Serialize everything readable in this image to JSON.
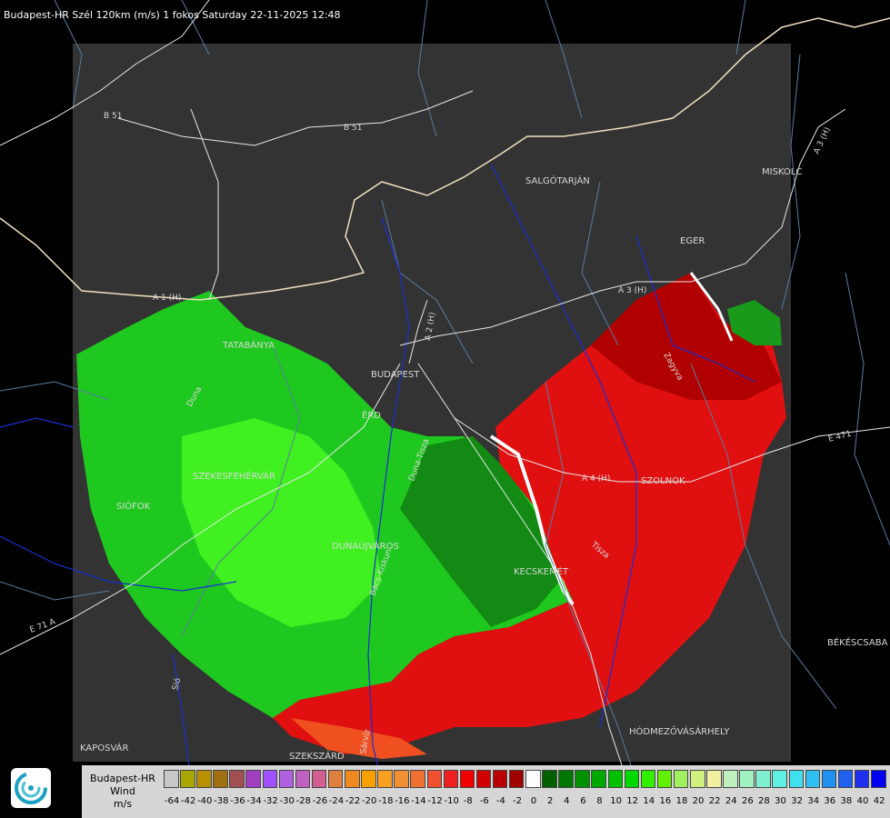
{
  "title": "Budapest-HR Szél 120km (m/s) 1 fokos Saturday 22-11-2025 12:48",
  "cities": [
    {
      "id": "salgotarjan",
      "name": "SALGÓTARJÁN"
    },
    {
      "id": "eger",
      "name": "EGER"
    },
    {
      "id": "miskolc",
      "name": "MISKOLC"
    },
    {
      "id": "tatabanya",
      "name": "TATABÁNYA"
    },
    {
      "id": "budapest",
      "name": "BUDAPEST"
    },
    {
      "id": "erd",
      "name": "ÉRD"
    },
    {
      "id": "szekesfehervar",
      "name": "SZÉKESFEHÉRVÁR"
    },
    {
      "id": "siofok",
      "name": "SIÓFOK"
    },
    {
      "id": "dunaujvaros",
      "name": "DUNAÚJVÁROS"
    },
    {
      "id": "kecskemet",
      "name": "KECSKEMÉT"
    },
    {
      "id": "szolnok",
      "name": "SZOLNOK"
    },
    {
      "id": "bekescsaba",
      "name": "BÉKÉSCSABA"
    },
    {
      "id": "hodmezovasarhely",
      "name": "HÓDMEZŐVÁSÁRHELY"
    },
    {
      "id": "kaposvar",
      "name": "KAPOSVÁR"
    },
    {
      "id": "szekszard",
      "name": "SZEKSZÁRD"
    }
  ],
  "roads": [
    {
      "id": "b51a",
      "name": "B 51"
    },
    {
      "id": "b51b",
      "name": "B 51"
    },
    {
      "id": "a3a",
      "name": "A 3 (H)"
    },
    {
      "id": "a3b",
      "name": "A 3 (H)"
    },
    {
      "id": "a1",
      "name": "A 1 (H)"
    },
    {
      "id": "a2",
      "name": "A 2 (H)"
    },
    {
      "id": "a4",
      "name": "A 4 (H)"
    },
    {
      "id": "e71",
      "name": "E 71 A"
    },
    {
      "id": "e471",
      "name": "E 471"
    },
    {
      "id": "duna",
      "name": "Duna"
    },
    {
      "id": "tisza",
      "name": "Tisza"
    },
    {
      "id": "zagyva",
      "name": "Zagyva"
    },
    {
      "id": "sarviz",
      "name": "Sárvíz"
    },
    {
      "id": "sio",
      "name": "Sió"
    },
    {
      "id": "duna-tisza",
      "name": "Duna-Tisza"
    },
    {
      "id": "bacs",
      "name": "Bács-Kiskun"
    }
  ],
  "legend": {
    "station": "Budapest-HR",
    "quantity": "Wind",
    "unit": "m/s",
    "ticks": [
      "-64",
      "-42",
      "-40",
      "-38",
      "-36",
      "-34",
      "-32",
      "-30",
      "-28",
      "-26",
      "-24",
      "-22",
      "-20",
      "-18",
      "-16",
      "-14",
      "-12",
      "-10",
      "-8",
      "-6",
      "-4",
      "-2",
      "0",
      "2",
      "4",
      "6",
      "8",
      "10",
      "12",
      "14",
      "16",
      "18",
      "20",
      "22",
      "24",
      "26",
      "28",
      "30",
      "32",
      "34",
      "36",
      "38",
      "40",
      "42"
    ],
    "colors": [
      "#c8c8c8",
      "#a8a800",
      "#b89000",
      "#a07010",
      "#a05050",
      "#a040c0",
      "#a050ff",
      "#b060e0",
      "#c060c0",
      "#d06090",
      "#e08040",
      "#f08820",
      "#f8a000",
      "#f8a020",
      "#f09030",
      "#f07030",
      "#f05030",
      "#f02020",
      "#f00000",
      "#d00000",
      "#b80000",
      "#a00000",
      "#ffffff",
      "#006000",
      "#007800",
      "#009000",
      "#00a800",
      "#00c000",
      "#00d800",
      "#30f000",
      "#60f000",
      "#a0f060",
      "#d0f080",
      "#f0f0a0",
      "#c0f0c0",
      "#a0f0c0",
      "#80f0d0",
      "#60f0e0",
      "#40e0f0",
      "#30c0f0",
      "#2090f0",
      "#2060f0",
      "#2030f0",
      "#0000f0"
    ]
  }
}
